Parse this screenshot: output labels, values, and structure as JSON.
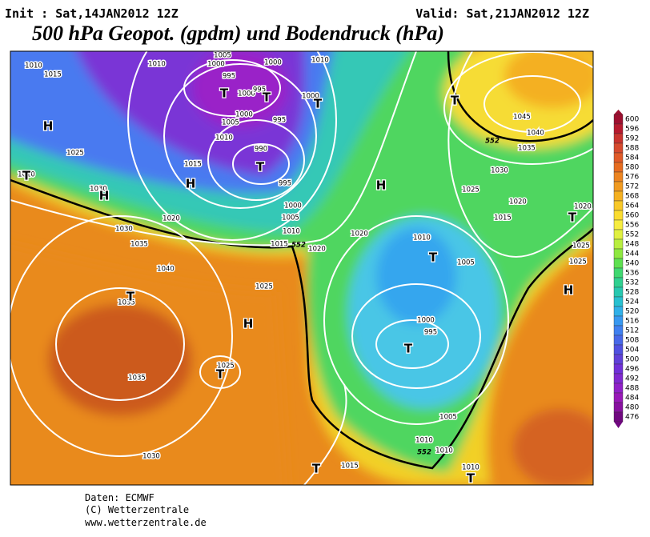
{
  "header": {
    "init": "Init : Sat,14JAN2012 12Z",
    "valid": "Valid: Sat,21JAN2012 12Z",
    "title": "500 hPa Geopot. (gpdm) und Bodendruck (hPa)"
  },
  "map": {
    "centers": [
      "H",
      "T",
      "T",
      "T",
      "T",
      "H",
      "H",
      "T",
      "T",
      "H",
      "T",
      "T",
      "H",
      "T",
      "H",
      "T",
      "T",
      "T",
      "T"
    ],
    "isobar_labels": [
      1010,
      1015,
      1010,
      1000,
      1005,
      1000,
      995,
      1000,
      995,
      1000,
      1010,
      1005,
      1000,
      995,
      1010,
      990,
      1015,
      995,
      1000,
      1005,
      1010,
      1015,
      1020,
      1025,
      1010,
      1030,
      1020,
      1030,
      1035,
      1040,
      1035,
      1025,
      1035,
      1030,
      1025,
      1020,
      1010,
      1005,
      1000,
      995,
      1005,
      1010,
      1010,
      1015,
      1010,
      1045,
      1040,
      1035,
      1030,
      1025,
      1020,
      1015,
      1020,
      1025,
      1025
    ],
    "contour_labels": [
      552,
      552,
      552
    ]
  },
  "legend": {
    "ticks": [
      600,
      596,
      592,
      588,
      584,
      580,
      576,
      572,
      568,
      564,
      560,
      556,
      552,
      548,
      544,
      540,
      536,
      532,
      528,
      524,
      520,
      516,
      512,
      508,
      504,
      500,
      496,
      492,
      488,
      484,
      480,
      476
    ],
    "colors": [
      "#9e0f2f",
      "#b6192e",
      "#c8332e",
      "#d64a2e",
      "#e05a28",
      "#e66c20",
      "#ec8420",
      "#f09a20",
      "#f4b020",
      "#f8c828",
      "#fadc30",
      "#f6ec40",
      "#e0f040",
      "#b8ee40",
      "#8ee840",
      "#5ee050",
      "#40d870",
      "#30d090",
      "#28c8b0",
      "#28c0d0",
      "#30b0e8",
      "#3898f0",
      "#4080f0",
      "#4868e8",
      "#5050e0",
      "#6040d8",
      "#7030d8",
      "#8028d0",
      "#9020c8",
      "#9818b8",
      "#8810a0",
      "#700880"
    ]
  },
  "footer": {
    "lines": [
      "Daten: ECMWF",
      "(C) Wetterzentrale",
      "www.wetterzentrale.de"
    ]
  }
}
